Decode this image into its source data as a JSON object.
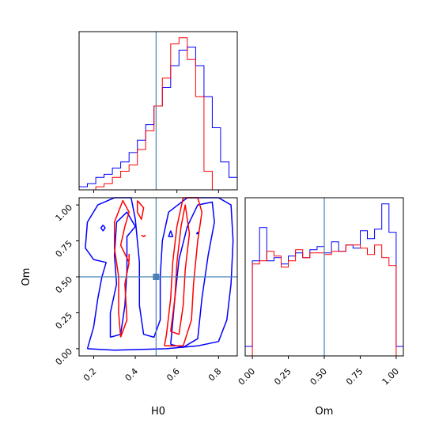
{
  "colors": {
    "series_a": "#0000ff",
    "series_b": "#ff0000",
    "truth": "#4682b4"
  },
  "chart_data": [
    {
      "type": "histogram",
      "panel": "H0 marginal",
      "xlim": [
        0.13,
        0.89
      ],
      "truth": 0.5,
      "bins": [
        0.13,
        0.17,
        0.21,
        0.25,
        0.29,
        0.33,
        0.37,
        0.41,
        0.45,
        0.49,
        0.53,
        0.57,
        0.61,
        0.65,
        0.69,
        0.73,
        0.77,
        0.81,
        0.85,
        0.89
      ],
      "series": [
        {
          "color": "blue",
          "values": [
            1,
            2,
            4,
            5,
            7,
            9,
            12,
            16,
            21,
            27,
            33,
            40,
            45,
            46,
            40,
            30,
            20,
            9,
            4
          ]
        },
        {
          "color": "red",
          "values": [
            0,
            0,
            1,
            2,
            4,
            6,
            8,
            13,
            19,
            27,
            36,
            47,
            49,
            42,
            30,
            6,
            0,
            0,
            0
          ]
        }
      ]
    },
    {
      "type": "contour",
      "panel": "H0 vs Om",
      "xlabel": "H0",
      "ylabel": "Om",
      "xlim": [
        0.13,
        0.89
      ],
      "ylim": [
        -0.05,
        1.05
      ],
      "xticks": [
        "0.2",
        "0.4",
        "0.6",
        "0.8"
      ],
      "yticks": [
        "0.00",
        "0.25",
        "0.50",
        "0.75",
        "1.00"
      ],
      "truth": [
        0.5,
        0.5
      ],
      "series": [
        {
          "color": "blue",
          "contours": [
            [
              [
                0.17,
                0.0
              ],
              [
                0.3,
                -0.01
              ],
              [
                0.55,
                0.0
              ],
              [
                0.7,
                0.02
              ],
              [
                0.8,
                0.05
              ],
              [
                0.84,
                0.2
              ],
              [
                0.86,
                0.45
              ],
              [
                0.87,
                0.75
              ],
              [
                0.86,
                1.0
              ],
              [
                0.8,
                1.05
              ],
              [
                0.65,
                1.05
              ],
              [
                0.56,
                0.95
              ],
              [
                0.53,
                0.75
              ],
              [
                0.52,
                0.5
              ],
              [
                0.52,
                0.2
              ],
              [
                0.49,
                0.08
              ],
              [
                0.44,
                0.1
              ],
              [
                0.42,
                0.3
              ],
              [
                0.42,
                0.6
              ],
              [
                0.4,
                0.9
              ],
              [
                0.38,
                1.05
              ],
              [
                0.3,
                1.05
              ],
              [
                0.22,
                1.0
              ],
              [
                0.17,
                0.88
              ],
              [
                0.16,
                0.7
              ],
              [
                0.2,
                0.62
              ],
              [
                0.26,
                0.6
              ],
              [
                0.24,
                0.5
              ],
              [
                0.22,
                0.35
              ],
              [
                0.2,
                0.15
              ],
              [
                0.17,
                0.0
              ]
            ],
            [
              [
                0.57,
                0.03
              ],
              [
                0.63,
                0.01
              ],
              [
                0.7,
                0.07
              ],
              [
                0.72,
                0.35
              ],
              [
                0.75,
                0.65
              ],
              [
                0.78,
                0.88
              ],
              [
                0.77,
                1.02
              ],
              [
                0.7,
                1.0
              ],
              [
                0.65,
                0.85
              ],
              [
                0.61,
                0.62
              ],
              [
                0.59,
                0.35
              ],
              [
                0.57,
                0.03
              ]
            ],
            [
              [
                0.28,
                0.08
              ],
              [
                0.33,
                0.1
              ],
              [
                0.35,
                0.3
              ],
              [
                0.36,
                0.55
              ],
              [
                0.36,
                0.78
              ],
              [
                0.4,
                0.85
              ],
              [
                0.36,
                0.95
              ],
              [
                0.31,
                0.88
              ],
              [
                0.3,
                0.65
              ],
              [
                0.31,
                0.45
              ],
              [
                0.28,
                0.25
              ],
              [
                0.28,
                0.08
              ]
            ],
            [
              [
                0.57,
                0.82
              ],
              [
                0.56,
                0.78
              ],
              [
                0.58,
                0.78
              ],
              [
                0.57,
                0.82
              ]
            ],
            [
              [
                0.245,
                0.86
              ],
              [
                0.235,
                0.84
              ],
              [
                0.245,
                0.82
              ],
              [
                0.255,
                0.84
              ],
              [
                0.245,
                0.86
              ]
            ],
            [
              [
                0.705,
                0.8
              ],
              [
                0.695,
                0.8
              ],
              [
                0.7,
                0.81
              ],
              [
                0.705,
                0.8
              ]
            ]
          ]
        },
        {
          "color": "red",
          "contours": [
            [
              [
                0.54,
                0.02
              ],
              [
                0.63,
                0.02
              ],
              [
                0.67,
                0.2
              ],
              [
                0.68,
                0.45
              ],
              [
                0.7,
                0.75
              ],
              [
                0.72,
                0.95
              ],
              [
                0.7,
                1.05
              ],
              [
                0.63,
                1.05
              ],
              [
                0.6,
                0.85
              ],
              [
                0.58,
                0.6
              ],
              [
                0.57,
                0.35
              ],
              [
                0.55,
                0.1
              ],
              [
                0.54,
                0.02
              ]
            ],
            [
              [
                0.57,
                0.12
              ],
              [
                0.61,
                0.1
              ],
              [
                0.63,
                0.3
              ],
              [
                0.64,
                0.55
              ],
              [
                0.66,
                0.8
              ],
              [
                0.64,
                1.0
              ],
              [
                0.62,
                0.85
              ],
              [
                0.6,
                0.6
              ],
              [
                0.59,
                0.35
              ],
              [
                0.57,
                0.12
              ]
            ],
            [
              [
                0.33,
                0.08
              ],
              [
                0.36,
                0.2
              ],
              [
                0.35,
                0.45
              ],
              [
                0.37,
                0.6
              ],
              [
                0.33,
                0.72
              ],
              [
                0.35,
                0.85
              ],
              [
                0.37,
                0.95
              ],
              [
                0.34,
                1.03
              ],
              [
                0.3,
                0.88
              ],
              [
                0.3,
                0.7
              ],
              [
                0.32,
                0.5
              ],
              [
                0.32,
                0.25
              ],
              [
                0.33,
                0.08
              ]
            ],
            [
              [
                0.41,
                1.03
              ],
              [
                0.41,
                0.95
              ],
              [
                0.43,
                0.9
              ],
              [
                0.44,
                0.98
              ],
              [
                0.41,
                1.03
              ]
            ],
            [
              [
                0.37,
                0.66
              ],
              [
                0.37,
                0.61
              ]
            ],
            [
              [
                0.43,
                0.79
              ],
              [
                0.44,
                0.78
              ],
              [
                0.45,
                0.79
              ]
            ]
          ]
        }
      ]
    },
    {
      "type": "histogram",
      "panel": "Om marginal",
      "xlabel": "Om",
      "xlim": [
        -0.05,
        1.05
      ],
      "xticks": [
        "0.00",
        "0.25",
        "0.50",
        "0.75",
        "1.00"
      ],
      "truth": 0.5,
      "bins": [
        -0.05,
        0.0,
        0.05,
        0.1,
        0.15,
        0.2,
        0.25,
        0.3,
        0.35,
        0.4,
        0.45,
        0.5,
        0.55,
        0.6,
        0.65,
        0.7,
        0.75,
        0.8,
        0.85,
        0.9,
        0.95,
        1.0,
        1.05
      ],
      "series": [
        {
          "color": "blue",
          "values": [
            0.06,
            0.6,
            0.81,
            0.6,
            0.62,
            0.58,
            0.63,
            0.65,
            0.62,
            0.67,
            0.69,
            0.65,
            0.72,
            0.66,
            0.7,
            0.68,
            0.79,
            0.74,
            0.8,
            0.96,
            0.78,
            0.06
          ]
        },
        {
          "color": "red",
          "values": [
            0.0,
            0.58,
            0.6,
            0.66,
            0.63,
            0.56,
            0.6,
            0.67,
            0.62,
            0.65,
            0.65,
            0.64,
            0.66,
            0.66,
            0.7,
            0.7,
            0.68,
            0.64,
            0.7,
            0.62,
            0.57,
            0.0
          ]
        }
      ]
    }
  ]
}
